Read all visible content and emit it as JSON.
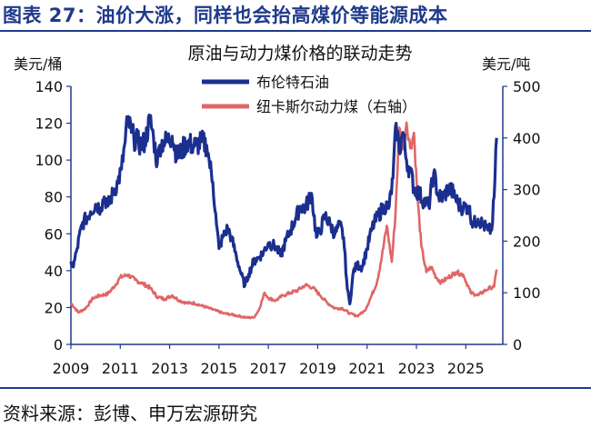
{
  "figure": {
    "title": "图表 27：油价大涨，同样也会抬高煤价等能源成本",
    "source": "资料来源：彭博、申万宏源研究"
  },
  "chart_data": {
    "type": "line",
    "title": "原油与动力煤价格的联动走势",
    "ylabel_left": "美元/桶",
    "ylabel_right": "美元/吨",
    "ylim_left": [
      0,
      140
    ],
    "ylim_right": [
      0,
      500
    ],
    "xlim": [
      2009,
      2026.5
    ],
    "yticks_left": [
      0,
      20,
      40,
      60,
      80,
      100,
      120,
      140
    ],
    "yticks_right": [
      0,
      100,
      200,
      300,
      400,
      500
    ],
    "xticks": [
      2009,
      2011,
      2013,
      2015,
      2017,
      2019,
      2021,
      2023,
      2025
    ],
    "grid": false,
    "legend_position": "top-center",
    "series": [
      {
        "name": "布伦特石油",
        "axis": "left",
        "color": "#1b2f8f",
        "x": [
          2009.0,
          2009.1,
          2009.25,
          2009.45,
          2009.6,
          2009.8,
          2010.0,
          2010.2,
          2010.35,
          2010.5,
          2010.7,
          2010.9,
          2011.05,
          2011.2,
          2011.3,
          2011.45,
          2011.55,
          2011.7,
          2011.85,
          2012.0,
          2012.2,
          2012.35,
          2012.5,
          2012.6,
          2012.75,
          2012.9,
          2013.1,
          2013.3,
          2013.5,
          2013.7,
          2013.9,
          2014.1,
          2014.3,
          2014.5,
          2014.6,
          2014.75,
          2014.9,
          2015.0,
          2015.15,
          2015.35,
          2015.5,
          2015.7,
          2015.9,
          2016.05,
          2016.2,
          2016.4,
          2016.6,
          2016.8,
          2017.0,
          2017.3,
          2017.5,
          2017.7,
          2017.9,
          2018.1,
          2018.3,
          2018.5,
          2018.75,
          2018.95,
          2019.1,
          2019.3,
          2019.5,
          2019.7,
          2019.9,
          2020.05,
          2020.2,
          2020.3,
          2020.45,
          2020.6,
          2020.8,
          2021.0,
          2021.2,
          2021.45,
          2021.7,
          2021.9,
          2022.05,
          2022.18,
          2022.3,
          2022.45,
          2022.6,
          2022.75,
          2022.9,
          2023.1,
          2023.3,
          2023.5,
          2023.7,
          2023.9,
          2024.1,
          2024.3,
          2024.5,
          2024.7,
          2024.9,
          2025.1,
          2025.3,
          2025.5,
          2025.7,
          2025.9,
          2026.05,
          2026.15,
          2026.25
        ],
        "values": [
          45,
          42,
          52,
          65,
          68,
          72,
          76,
          74,
          80,
          75,
          82,
          88,
          95,
          110,
          122,
          115,
          112,
          110,
          108,
          110,
          122,
          112,
          98,
          108,
          110,
          110,
          113,
          102,
          105,
          110,
          108,
          108,
          110,
          108,
          100,
          88,
          65,
          52,
          58,
          63,
          58,
          48,
          38,
          32,
          38,
          45,
          47,
          50,
          55,
          53,
          48,
          56,
          62,
          68,
          75,
          74,
          82,
          58,
          62,
          70,
          65,
          60,
          65,
          58,
          30,
          22,
          40,
          43,
          42,
          52,
          63,
          70,
          75,
          75,
          90,
          120,
          105,
          115,
          100,
          94,
          85,
          82,
          78,
          75,
          93,
          80,
          80,
          85,
          82,
          76,
          74,
          75,
          65,
          68,
          65,
          62,
          62,
          80,
          112
        ]
      },
      {
        "name": "纽卡斯尔动力煤（右轴）",
        "axis": "right",
        "color": "#e06666",
        "x": [
          2009.0,
          2009.3,
          2009.6,
          2009.9,
          2010.2,
          2010.5,
          2010.8,
          2011.0,
          2011.3,
          2011.6,
          2011.9,
          2012.2,
          2012.5,
          2012.8,
          2013.1,
          2013.4,
          2013.7,
          2014.0,
          2014.3,
          2014.6,
          2014.9,
          2015.2,
          2015.5,
          2015.8,
          2016.1,
          2016.4,
          2016.6,
          2016.85,
          2017.0,
          2017.3,
          2017.6,
          2017.9,
          2018.2,
          2018.5,
          2018.8,
          2019.1,
          2019.4,
          2019.7,
          2020.0,
          2020.3,
          2020.6,
          2020.9,
          2021.1,
          2021.4,
          2021.6,
          2021.8,
          2022.0,
          2022.15,
          2022.3,
          2022.45,
          2022.6,
          2022.75,
          2022.9,
          2023.05,
          2023.2,
          2023.4,
          2023.6,
          2023.8,
          2024.0,
          2024.3,
          2024.6,
          2024.9,
          2025.2,
          2025.5,
          2025.8,
          2026.0,
          2026.15,
          2026.25
        ],
        "values": [
          80,
          62,
          70,
          90,
          95,
          98,
          115,
          130,
          135,
          125,
          118,
          110,
          92,
          88,
          95,
          85,
          80,
          80,
          75,
          70,
          65,
          60,
          58,
          55,
          52,
          52,
          65,
          100,
          90,
          85,
          95,
          100,
          105,
          115,
          110,
          95,
          80,
          70,
          70,
          60,
          55,
          65,
          85,
          120,
          170,
          230,
          160,
          250,
          420,
          380,
          430,
          380,
          410,
          280,
          190,
          140,
          150,
          130,
          120,
          130,
          140,
          135,
          100,
          95,
          105,
          110,
          112,
          145
        ]
      }
    ]
  }
}
